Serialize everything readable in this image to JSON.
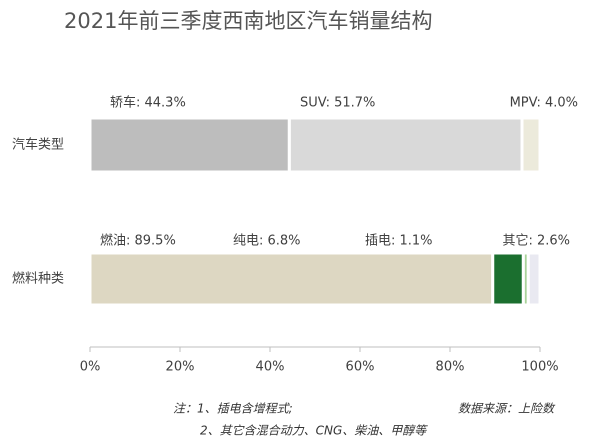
{
  "chart_data": {
    "type": "stacked-bar",
    "title": "2021年前三季度西南地区汽车销量结构",
    "bars": [
      {
        "label": "汽车类型",
        "segments": [
          {
            "label": "轿车: 44.3%",
            "value": 44.3,
            "color": "#bdbdbd"
          },
          {
            "label": "SUV: 51.7%",
            "value": 51.7,
            "color": "#d9d9d9"
          },
          {
            "label": "MPV: 4.0%",
            "value": 4.0,
            "color": "#eceadb"
          }
        ]
      },
      {
        "label": "燃料种类",
        "segments": [
          {
            "label": "燃油: 89.5%",
            "value": 89.5,
            "color": "#ddd7c2"
          },
          {
            "label": "纯电: 6.8%",
            "value": 6.8,
            "color": "#1b6f2f"
          },
          {
            "label": "插电: 1.1%",
            "value": 1.1,
            "color": "#a9d39a"
          },
          {
            "label": "其它: 2.6%",
            "value": 2.6,
            "color": "#e9e9f1"
          }
        ]
      }
    ],
    "xlim": [
      0,
      100
    ],
    "xticks": [
      {
        "value": 0,
        "label": "0%"
      },
      {
        "value": 20,
        "label": "20%"
      },
      {
        "value": 40,
        "label": "40%"
      },
      {
        "value": 60,
        "label": "60%"
      },
      {
        "value": 80,
        "label": "80%"
      },
      {
        "value": 100,
        "label": "100%"
      }
    ],
    "notes": [
      "注：1、插电含增程式;",
      "2、其它含混合动力、CNG、柴油、甲醇等"
    ],
    "source": "数据来源：上险数"
  }
}
